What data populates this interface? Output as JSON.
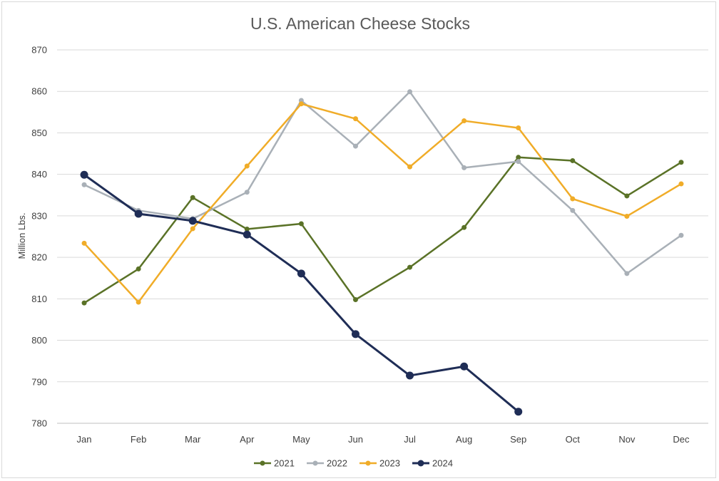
{
  "chart_data": {
    "type": "line",
    "title": "U.S. American Cheese Stocks",
    "xlabel": "",
    "ylabel": "Million Lbs.",
    "ylim": [
      780,
      870
    ],
    "yticks": [
      780,
      790,
      800,
      810,
      820,
      830,
      840,
      850,
      860,
      870
    ],
    "grid": true,
    "legend_position": "bottom",
    "categories": [
      "Jan",
      "Feb",
      "Mar",
      "Apr",
      "May",
      "Jun",
      "Jul",
      "Aug",
      "Sep",
      "Oct",
      "Nov",
      "Dec"
    ],
    "series": [
      {
        "name": "2021",
        "color": "#5a7227",
        "values": [
          809,
          817.2,
          834.4,
          826.8,
          828.1,
          809.8,
          817.6,
          827.2,
          844.1,
          843.3,
          834.8,
          842.9
        ]
      },
      {
        "name": "2022",
        "color": "#a9b0b7",
        "values": [
          837.5,
          831.3,
          829.3,
          835.7,
          857.8,
          846.8,
          859.9,
          841.6,
          843.1,
          831.3,
          816.1,
          825.3
        ]
      },
      {
        "name": "2023",
        "color": "#f0ac28",
        "values": [
          823.4,
          809.2,
          826.9,
          842,
          857,
          853.4,
          841.8,
          852.9,
          851.2,
          834.1,
          829.9,
          837.7
        ]
      },
      {
        "name": "2024",
        "color": "#1f2d56",
        "values": [
          839.9,
          830.5,
          828.8,
          825.5,
          816.1,
          801.5,
          791.5,
          793.7,
          782.8,
          null,
          null,
          null
        ]
      }
    ]
  }
}
